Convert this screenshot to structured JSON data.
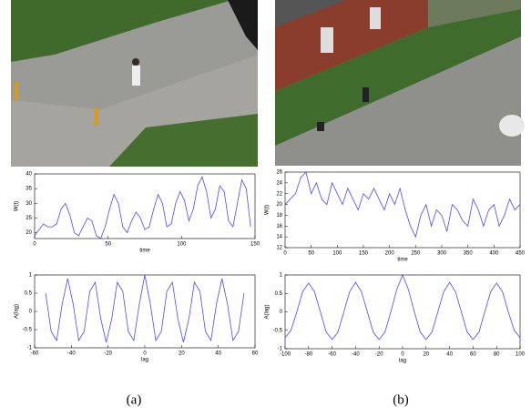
{
  "chart_data": [
    {
      "type": "line",
      "x_label": "time",
      "y_label": "W(t)",
      "x": [
        0,
        3,
        6,
        9,
        12,
        15,
        18,
        21,
        24,
        27,
        30,
        33,
        36,
        39,
        42,
        45,
        48,
        51,
        54,
        57,
        60,
        63,
        66,
        69,
        72,
        75,
        78,
        81,
        84,
        87,
        90,
        93,
        96,
        99,
        102,
        105,
        108,
        111,
        114,
        117,
        120,
        123,
        126,
        129,
        132,
        135,
        138,
        141,
        144,
        147
      ],
      "series": [
        {
          "color": "#4a4aff",
          "values": [
            19,
            21,
            23,
            22,
            22,
            23,
            28,
            30,
            26,
            20,
            19,
            22,
            25,
            24,
            19,
            18,
            22,
            28,
            33,
            30,
            22,
            20,
            24,
            27,
            25,
            21,
            22,
            28,
            33,
            30,
            22,
            23,
            30,
            34,
            31,
            24,
            28,
            36,
            39,
            34,
            25,
            28,
            36,
            34,
            24,
            22,
            30,
            38,
            35,
            22
          ]
        }
      ],
      "xlim": [
        0,
        150
      ],
      "xticks": [
        0,
        50,
        100,
        150
      ],
      "ylim": [
        18,
        40
      ],
      "yticks": [
        20,
        25,
        30,
        35,
        40
      ]
    },
    {
      "type": "line",
      "x_label": "lag",
      "y_label": "A(lag)",
      "x": [
        -54,
        -51,
        -48,
        -45,
        -42,
        -39,
        -36,
        -33,
        -30,
        -27,
        -24,
        -21,
        -18,
        -15,
        -12,
        -9,
        -6,
        -3,
        0,
        3,
        6,
        9,
        12,
        15,
        18,
        21,
        24,
        27,
        30,
        33,
        36,
        39,
        42,
        45,
        48,
        51,
        54
      ],
      "series": [
        {
          "color": "#4a4aff",
          "values": [
            0.5,
            -0.55,
            -0.8,
            0.2,
            0.9,
            0.2,
            -0.8,
            -0.55,
            0.55,
            0.8,
            -0.2,
            -0.85,
            -0.2,
            0.8,
            0.55,
            -0.55,
            -0.8,
            0.2,
            1,
            0.2,
            -0.8,
            -0.55,
            0.55,
            0.8,
            -0.2,
            -0.85,
            -0.2,
            0.8,
            0.55,
            -0.55,
            -0.8,
            0.2,
            0.9,
            0.2,
            -0.8,
            -0.55,
            0.5
          ]
        }
      ],
      "xlim": [
        -60,
        60
      ],
      "xticks": [
        -60,
        -40,
        -20,
        0,
        20,
        40,
        60
      ],
      "ylim": [
        -1,
        1
      ],
      "yticks": [
        -1,
        -0.5,
        0,
        0.5,
        1
      ]
    },
    {
      "type": "line",
      "x_label": "time",
      "y_label": "W(t)",
      "x": [
        0,
        10,
        20,
        30,
        40,
        50,
        60,
        70,
        80,
        90,
        100,
        110,
        120,
        130,
        140,
        150,
        160,
        170,
        180,
        190,
        200,
        210,
        220,
        230,
        240,
        250,
        260,
        270,
        280,
        290,
        300,
        310,
        320,
        330,
        340,
        350,
        360,
        370,
        380,
        390,
        400,
        410,
        420,
        430,
        440,
        450
      ],
      "series": [
        {
          "color": "#4a4aff",
          "values": [
            20,
            21,
            22,
            25,
            26,
            22,
            24,
            21,
            20,
            24,
            22,
            20,
            23,
            21,
            19,
            22,
            21,
            23,
            21,
            19,
            22,
            20,
            23,
            19,
            16,
            14,
            18,
            20,
            16,
            19,
            18,
            15,
            20,
            19,
            17,
            16,
            21,
            19,
            16,
            19,
            20,
            16,
            18,
            21,
            19,
            20
          ]
        }
      ],
      "xlim": [
        0,
        450
      ],
      "xticks": [
        0,
        50,
        100,
        150,
        200,
        250,
        300,
        350,
        400,
        450
      ],
      "ylim": [
        12,
        26
      ],
      "yticks": [
        12,
        14,
        16,
        18,
        20,
        22,
        24,
        26
      ]
    },
    {
      "type": "line",
      "x_label": "lag",
      "y_label": "A(lag)",
      "x": [
        -100,
        -95,
        -90,
        -85,
        -80,
        -75,
        -70,
        -65,
        -60,
        -55,
        -50,
        -45,
        -40,
        -35,
        -30,
        -25,
        -20,
        -15,
        -10,
        -5,
        0,
        5,
        10,
        15,
        20,
        25,
        30,
        35,
        40,
        45,
        50,
        55,
        60,
        65,
        70,
        75,
        80,
        85,
        90,
        95,
        100
      ],
      "series": [
        {
          "color": "#4a4aff",
          "values": [
            -0.7,
            -0.5,
            0,
            0.55,
            0.78,
            0.55,
            0,
            -0.55,
            -0.75,
            -0.55,
            0,
            0.55,
            0.8,
            0.55,
            0,
            -0.55,
            -0.75,
            -0.55,
            0,
            0.6,
            1,
            0.6,
            0,
            -0.55,
            -0.75,
            -0.55,
            0,
            0.55,
            0.8,
            0.55,
            0,
            -0.55,
            -0.75,
            -0.55,
            0,
            0.55,
            0.78,
            0.55,
            0,
            -0.5,
            -0.7
          ]
        }
      ],
      "xlim": [
        -100,
        100
      ],
      "xticks": [
        -100,
        -80,
        -60,
        -40,
        -20,
        0,
        20,
        40,
        60,
        80,
        100
      ],
      "ylim": [
        -1,
        1
      ],
      "yticks": [
        -1,
        -0.5,
        0,
        0.5,
        1
      ]
    }
  ],
  "captions": [
    "(a)",
    "(b)"
  ]
}
